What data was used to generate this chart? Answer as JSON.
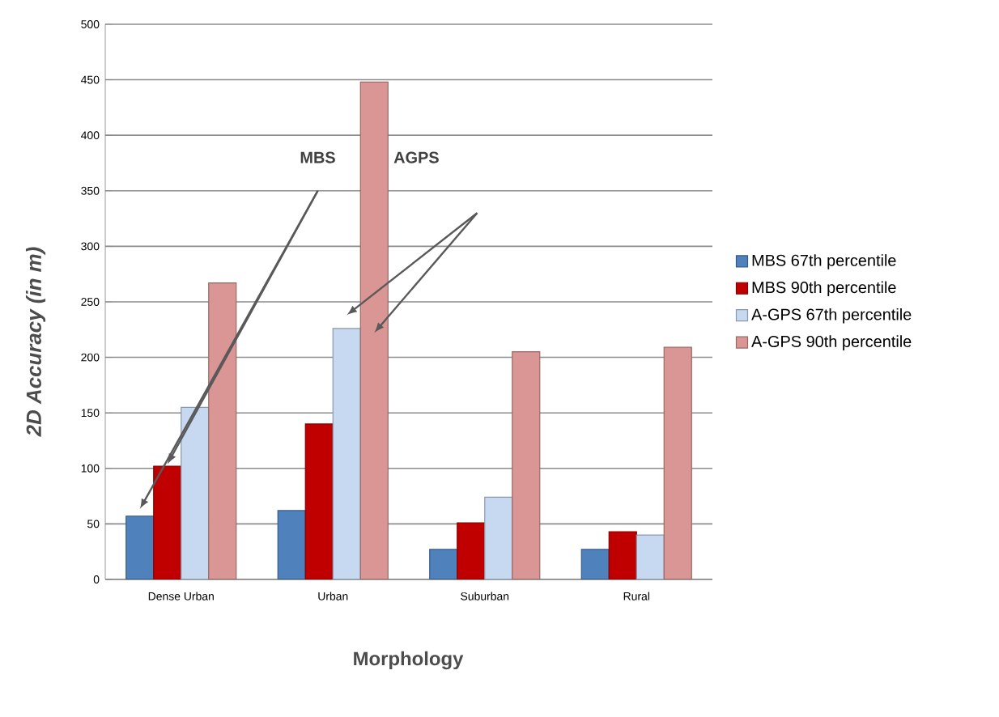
{
  "chart_data": {
    "type": "bar",
    "xlabel": "Morphology",
    "ylabel": "2D Accuracy (in m)",
    "categories": [
      "Dense Urban",
      "Urban",
      "Suburban",
      "Rural"
    ],
    "series": [
      {
        "name": "MBS 67th percentile",
        "color": "#4f81bd",
        "values": [
          57,
          62,
          27,
          27
        ]
      },
      {
        "name": "MBS 90th percentile",
        "color": "#c00000",
        "values": [
          102,
          140,
          51,
          43
        ]
      },
      {
        "name": "A-GPS 67th percentile",
        "color": "#c6d9f1",
        "values": [
          155,
          226,
          74,
          40
        ]
      },
      {
        "name": "A-GPS 90th percentile",
        "color": "#d99694",
        "values": [
          267,
          448,
          205,
          209
        ]
      }
    ],
    "annotations": [
      "MBS",
      "AGPS"
    ],
    "ylim": [
      0,
      500
    ],
    "yticks": [
      0,
      50,
      100,
      150,
      200,
      250,
      300,
      350,
      400,
      450,
      500
    ],
    "grid": "y",
    "legend": "right"
  }
}
